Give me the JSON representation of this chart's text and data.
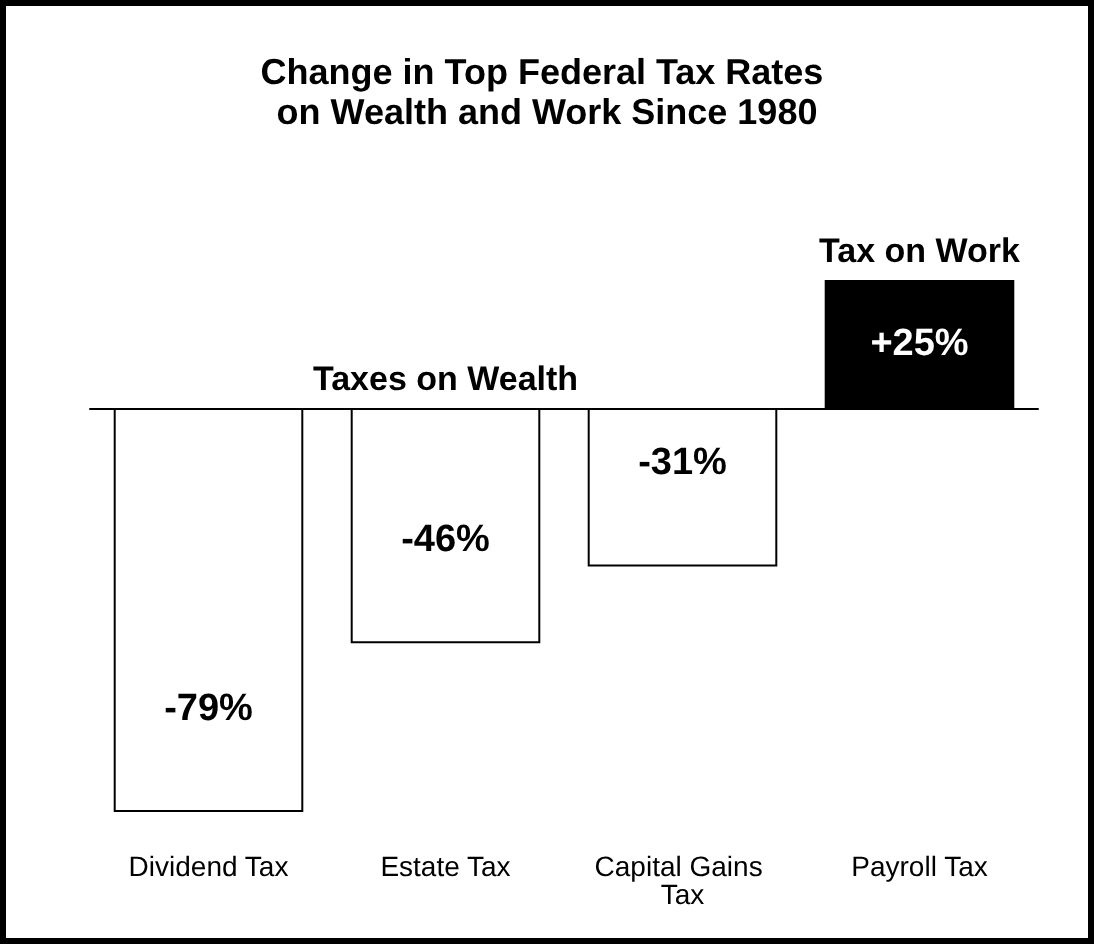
{
  "chart_data": {
    "type": "bar",
    "title": "Change in Top Federal Tax Rates on Wealth and Work Since 1980",
    "categories": [
      "Dividend Tax",
      "Estate Tax",
      "Capital Gains Tax",
      "Payroll Tax"
    ],
    "values": [
      -79,
      -46,
      -31,
      25
    ],
    "colors": [
      "#ffffff",
      "#ffffff",
      "#ffffff",
      "#000000"
    ],
    "value_labels": [
      "-79%",
      "-46%",
      "-31%",
      "+25%"
    ],
    "ylim": [
      -79,
      25
    ],
    "tick_labels": "x",
    "annotations": [
      {
        "text": "Taxes on Wealth",
        "x": "Estate Tax",
        "y": 0
      },
      {
        "text": "Tax on Work",
        "x": "Payroll Tax",
        "y": 25
      }
    ]
  }
}
